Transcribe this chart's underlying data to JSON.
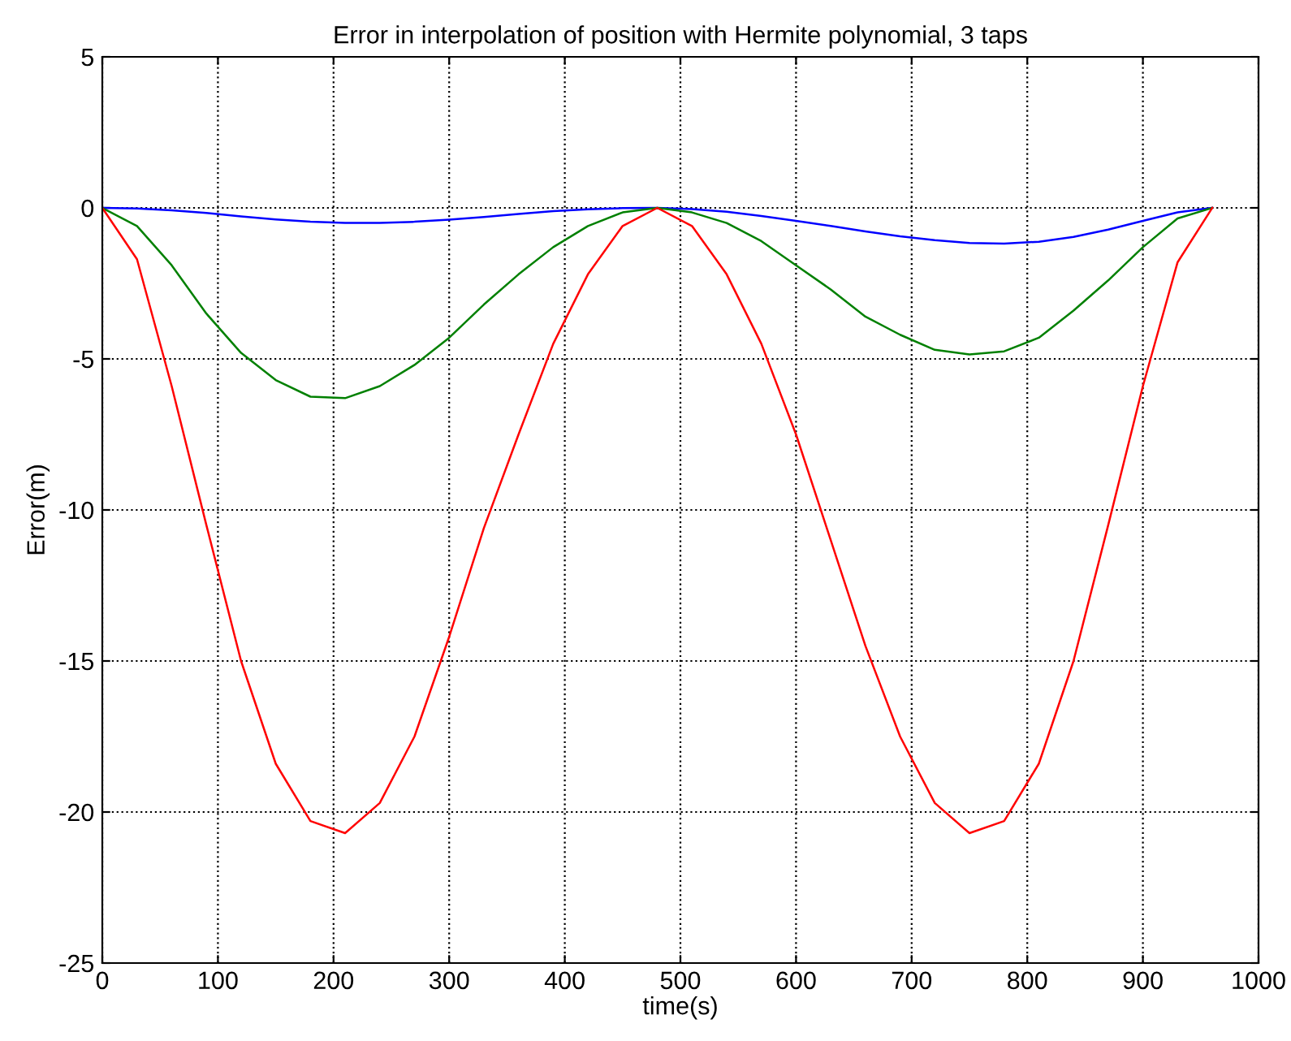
{
  "chart_data": {
    "type": "line",
    "title": "Error in interpolation of position with Hermite polynomial, 3 taps",
    "xlabel": "time(s)",
    "ylabel": "Error(m)",
    "x": [
      0,
      30,
      60,
      90,
      120,
      150,
      180,
      210,
      240,
      270,
      300,
      330,
      360,
      390,
      420,
      450,
      480,
      510,
      540,
      570,
      600,
      630,
      660,
      690,
      720,
      750,
      780,
      810,
      840,
      870,
      900,
      930,
      960
    ],
    "series": [
      {
        "color": "#0000ff",
        "values": [
          0,
          -0.02,
          -0.08,
          -0.17,
          -0.28,
          -0.38,
          -0.46,
          -0.5,
          -0.5,
          -0.46,
          -0.39,
          -0.3,
          -0.2,
          -0.11,
          -0.05,
          -0.01,
          0,
          -0.04,
          -0.13,
          -0.27,
          -0.43,
          -0.6,
          -0.78,
          -0.94,
          -1.07,
          -1.16,
          -1.18,
          -1.12,
          -0.96,
          -0.72,
          -0.43,
          -0.15,
          0
        ]
      },
      {
        "color": "#008000",
        "values": [
          0,
          -0.6,
          -1.9,
          -3.5,
          -4.8,
          -5.7,
          -6.25,
          -6.3,
          -5.9,
          -5.2,
          -4.3,
          -3.2,
          -2.2,
          -1.3,
          -0.6,
          -0.15,
          0,
          -0.15,
          -0.5,
          -1.1,
          -1.9,
          -2.7,
          -3.6,
          -4.2,
          -4.7,
          -4.85,
          -4.75,
          -4.3,
          -3.4,
          -2.4,
          -1.3,
          -0.35,
          0
        ]
      },
      {
        "color": "#ff0000",
        "values": [
          0,
          -1.7,
          -5.9,
          -10.5,
          -15,
          -18.4,
          -20.3,
          -20.7,
          -19.7,
          -17.5,
          -14.2,
          -10.6,
          -7.5,
          -4.5,
          -2.2,
          -0.6,
          0,
          -0.6,
          -2.2,
          -4.5,
          -7.5,
          -11,
          -14.5,
          -17.5,
          -19.7,
          -20.7,
          -20.3,
          -18.4,
          -15,
          -10.5,
          -5.9,
          -1.8,
          0
        ]
      }
    ],
    "xlim": [
      0,
      1000
    ],
    "xticks": [
      0,
      100,
      200,
      300,
      400,
      500,
      600,
      700,
      800,
      900,
      1000
    ],
    "ylim": [
      -25,
      5
    ],
    "yticks": [
      -25,
      -20,
      -15,
      -10,
      -5,
      0,
      5
    ],
    "grid": true,
    "line_style": "solid",
    "marker": "none"
  }
}
